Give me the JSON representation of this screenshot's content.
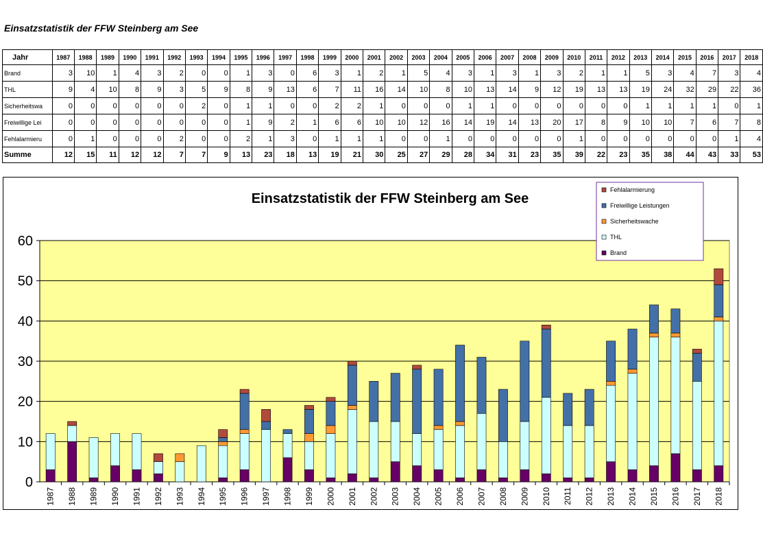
{
  "page": {
    "title": "Einsatzstatistik der FFW Steinberg am See"
  },
  "table": {
    "header_label": "Jahr",
    "years": [
      "1987",
      "1988",
      "1989",
      "1990",
      "1991",
      "1992",
      "1993",
      "1994",
      "1995",
      "1996",
      "1997",
      "1998",
      "1999",
      "2000",
      "2001",
      "2002",
      "2003",
      "2004",
      "2005",
      "2006",
      "2007",
      "2008",
      "2009",
      "2010",
      "2011",
      "2012",
      "2013",
      "2014",
      "2015",
      "2016",
      "2017",
      "2018"
    ],
    "rows": [
      {
        "label": "Brand",
        "values": [
          3,
          10,
          1,
          4,
          3,
          2,
          0,
          0,
          1,
          3,
          0,
          6,
          3,
          1,
          2,
          1,
          5,
          4,
          3,
          1,
          3,
          1,
          3,
          2,
          1,
          1,
          5,
          3,
          4,
          7,
          3,
          4
        ]
      },
      {
        "label": "THL",
        "values": [
          9,
          4,
          10,
          8,
          9,
          3,
          5,
          9,
          8,
          9,
          13,
          6,
          7,
          11,
          16,
          14,
          10,
          8,
          10,
          13,
          14,
          9,
          12,
          19,
          13,
          13,
          19,
          24,
          32,
          29,
          22,
          36
        ]
      },
      {
        "label": "Sicherheitswa",
        "values": [
          0,
          0,
          0,
          0,
          0,
          0,
          2,
          0,
          1,
          1,
          0,
          0,
          2,
          2,
          1,
          0,
          0,
          0,
          1,
          1,
          0,
          0,
          0,
          0,
          0,
          0,
          1,
          1,
          1,
          1,
          0,
          1
        ]
      },
      {
        "label": "Freiwillige Lei",
        "values": [
          0,
          0,
          0,
          0,
          0,
          0,
          0,
          0,
          1,
          9,
          2,
          1,
          6,
          6,
          10,
          10,
          12,
          16,
          14,
          19,
          14,
          13,
          20,
          17,
          8,
          9,
          10,
          10,
          7,
          6,
          7,
          8
        ]
      },
      {
        "label": "Fehlalarmieru",
        "values": [
          0,
          1,
          0,
          0,
          0,
          2,
          0,
          0,
          2,
          1,
          3,
          0,
          1,
          1,
          1,
          0,
          0,
          1,
          0,
          0,
          0,
          0,
          0,
          1,
          0,
          0,
          0,
          0,
          0,
          0,
          1,
          4
        ]
      }
    ],
    "sum_row": {
      "label": "Summe",
      "values": [
        12,
        15,
        11,
        12,
        12,
        7,
        7,
        9,
        13,
        23,
        18,
        13,
        19,
        21,
        30,
        25,
        27,
        29,
        28,
        34,
        31,
        23,
        35,
        39,
        22,
        23,
        35,
        38,
        44,
        43,
        33,
        53
      ]
    }
  },
  "chart_data": {
    "type": "bar",
    "stacked": true,
    "title": "Einsatzstatistik der FFW Steinberg am See",
    "xlabel": "",
    "ylabel": "",
    "ylim": [
      0,
      60
    ],
    "yticks": [
      "0",
      "10",
      "20",
      "30",
      "40",
      "50",
      "60"
    ],
    "grid": true,
    "legend_position": "top-right",
    "plot_background": "#FFFF99",
    "categories": [
      "1987",
      "1988",
      "1989",
      "1990",
      "1991",
      "1992",
      "1993",
      "1994",
      "1995",
      "1996",
      "1997",
      "1998",
      "1999",
      "2000",
      "2001",
      "2002",
      "2003",
      "2004",
      "2005",
      "2006",
      "2007",
      "2008",
      "2009",
      "2010",
      "2011",
      "2012",
      "2013",
      "2014",
      "2015",
      "2016",
      "2017",
      "2018"
    ],
    "series": [
      {
        "name": "Brand",
        "color": "#660066",
        "values": [
          3,
          10,
          1,
          4,
          3,
          2,
          0,
          0,
          1,
          3,
          0,
          6,
          3,
          1,
          2,
          1,
          5,
          4,
          3,
          1,
          3,
          1,
          3,
          2,
          1,
          1,
          5,
          3,
          4,
          7,
          3,
          4
        ]
      },
      {
        "name": "THL",
        "color": "#CCFFFF",
        "values": [
          9,
          4,
          10,
          8,
          9,
          3,
          5,
          9,
          8,
          9,
          13,
          6,
          7,
          11,
          16,
          14,
          10,
          8,
          10,
          13,
          14,
          9,
          12,
          19,
          13,
          13,
          19,
          24,
          32,
          29,
          22,
          36
        ]
      },
      {
        "name": "Sicherheitswache",
        "color": "#FF9933",
        "values": [
          0,
          0,
          0,
          0,
          0,
          0,
          2,
          0,
          1,
          1,
          0,
          0,
          2,
          2,
          1,
          0,
          0,
          0,
          1,
          1,
          0,
          0,
          0,
          0,
          0,
          0,
          1,
          1,
          1,
          1,
          0,
          1
        ]
      },
      {
        "name": "Freiwillige Leistungen",
        "color": "#4470A8",
        "values": [
          0,
          0,
          0,
          0,
          0,
          0,
          0,
          0,
          1,
          9,
          2,
          1,
          6,
          6,
          10,
          10,
          12,
          16,
          14,
          19,
          14,
          13,
          20,
          17,
          8,
          9,
          10,
          10,
          7,
          6,
          7,
          8
        ]
      },
      {
        "name": "Fehlalarmierung",
        "color": "#B04A3C",
        "values": [
          0,
          1,
          0,
          0,
          0,
          2,
          0,
          0,
          2,
          1,
          3,
          0,
          1,
          1,
          1,
          0,
          0,
          1,
          0,
          0,
          0,
          0,
          0,
          1,
          0,
          0,
          0,
          0,
          0,
          0,
          1,
          4
        ]
      }
    ]
  }
}
